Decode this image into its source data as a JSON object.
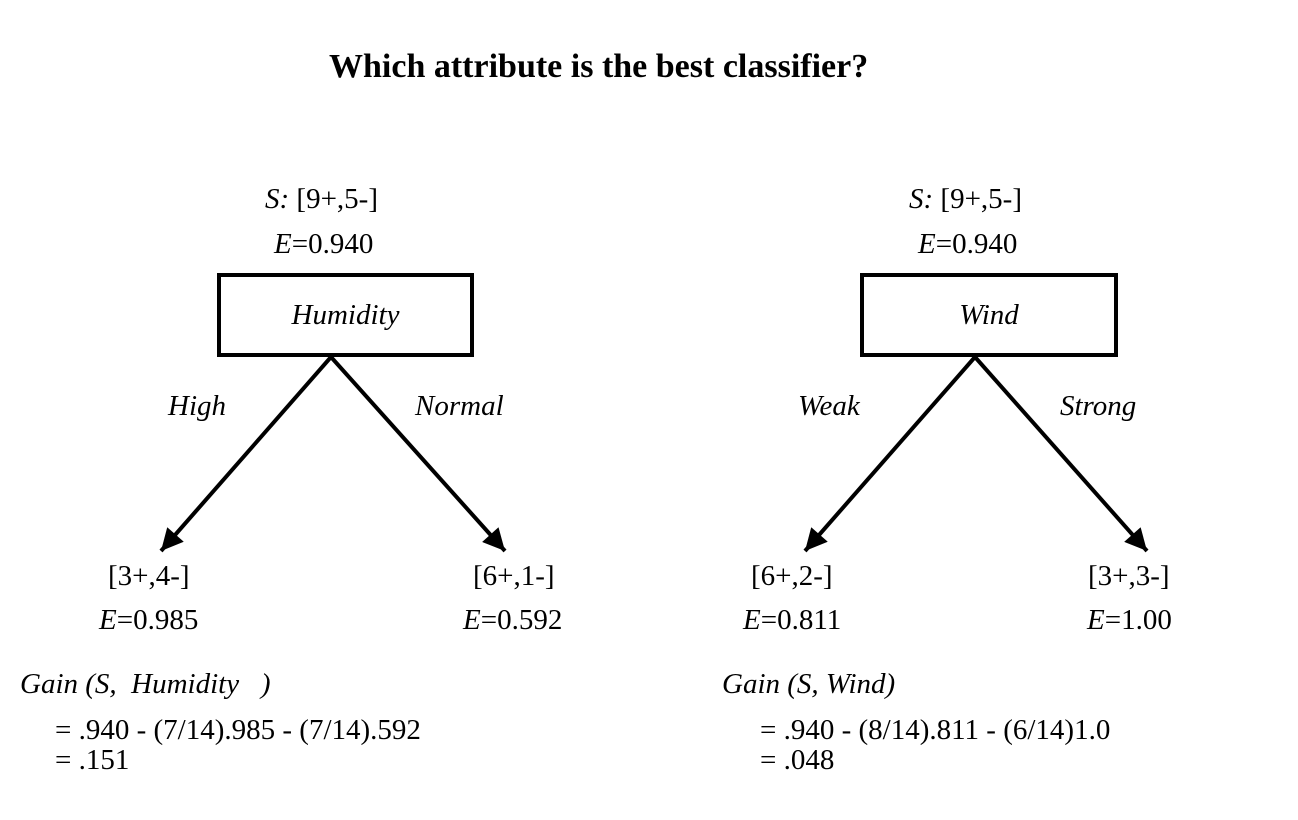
{
  "title": "Which attribute is the best classifier?",
  "trees": [
    {
      "root": {
        "set_prefix": "S:",
        "set_counts": "[9+,5-]",
        "entropy_prefix": "E",
        "entropy_value": "=0.940"
      },
      "attribute": "Humidity",
      "branches": [
        {
          "label": "High",
          "counts": "[3+,4-]",
          "entropy_prefix": "E",
          "entropy_value": "=0.985"
        },
        {
          "label": "Normal",
          "counts": "[6+,1-]",
          "entropy_prefix": "E",
          "entropy_value": "=0.592"
        }
      ],
      "gain": {
        "label_open": "Gain (S,",
        "label_attr": "Humidity",
        "label_close": ")",
        "line1": "= .940 - (7/14).985 - (7/14).592",
        "line2": "= .151"
      }
    },
    {
      "root": {
        "set_prefix": "S:",
        "set_counts": "[9+,5-]",
        "entropy_prefix": "E",
        "entropy_value": "=0.940"
      },
      "attribute": "Wind",
      "branches": [
        {
          "label": "Weak",
          "counts": "[6+,2-]",
          "entropy_prefix": "E",
          "entropy_value": "=0.811"
        },
        {
          "label": "Strong",
          "counts": "[3+,3-]",
          "entropy_prefix": "E",
          "entropy_value": "=1.00"
        }
      ],
      "gain": {
        "label_open": "Gain (S,",
        "label_attr": "Wind",
        "label_close": ")",
        "line1": "= .940 - (8/14).811 - (6/14)1.0",
        "line2": "= .048"
      }
    }
  ]
}
